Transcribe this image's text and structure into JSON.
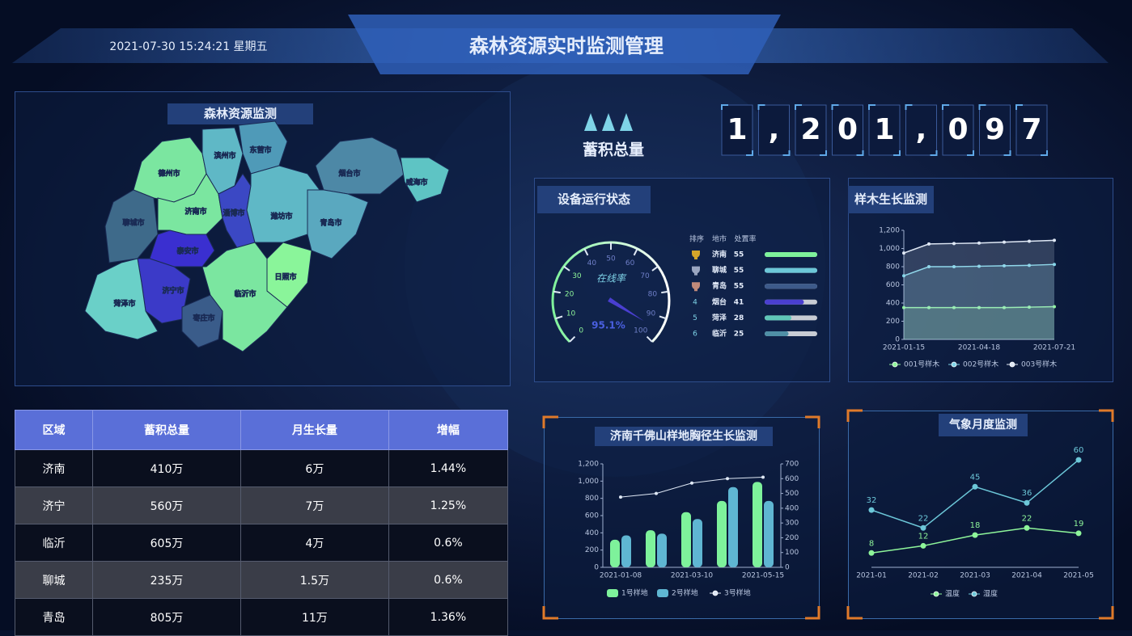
{
  "header": {
    "datetime": "2021-07-30 15:24:21 星期五",
    "title": "森林资源实时监测管理"
  },
  "map": {
    "title": "森林资源监测",
    "regions": [
      "德州市",
      "滨州市",
      "东营市",
      "烟台市",
      "威海市",
      "聊城市",
      "济南市",
      "淄博市",
      "潍坊市",
      "青岛市",
      "泰安市",
      "济宁市",
      "菏泽市",
      "枣庄市",
      "临沂市",
      "日照市"
    ]
  },
  "stock": {
    "label": "蓄积总量",
    "digits": [
      "1",
      ",",
      "2",
      "0",
      "1",
      ",",
      "0",
      "9",
      "7"
    ]
  },
  "device_status": {
    "title": "设备运行状态",
    "gauge": {
      "label": "在线率",
      "value": 95.1,
      "value_label": "95.1%",
      "range": [
        0,
        100
      ],
      "ticks": [
        0,
        10,
        20,
        30,
        40,
        50,
        60,
        70,
        80,
        90,
        100
      ]
    },
    "ranking": {
      "headers": [
        "排序",
        "地市",
        "处置率"
      ],
      "rows": [
        [
          null,
          "济南",
          55
        ],
        [
          null,
          "聊城",
          55
        ],
        [
          null,
          "青岛",
          55
        ],
        [
          4,
          "烟台",
          41
        ],
        [
          5,
          "菏泽",
          28
        ],
        [
          6,
          "临沂",
          25
        ]
      ],
      "bar_colors": [
        "#7ef29b",
        "#6cc7d8",
        "#3d5a8a",
        "#4a3fd0",
        "#5fc6b8",
        "#4f8fa6"
      ]
    }
  },
  "table": {
    "headers": [
      "区域",
      "蓄积总量",
      "月生长量",
      "增幅"
    ],
    "rows": [
      [
        "济南",
        "410万",
        "6万",
        "1.44%"
      ],
      [
        "济宁",
        "560万",
        "7万",
        "1.25%"
      ],
      [
        "临沂",
        "605万",
        "4万",
        "0.6%"
      ],
      [
        "聊城",
        "235万",
        "1.5万",
        "0.6%"
      ],
      [
        "青岛",
        "805万",
        "11万",
        "1.36%"
      ]
    ]
  },
  "chart_data": [
    {
      "type": "line",
      "title": "样木生长监测",
      "categories": [
        "2021-01-15",
        null,
        null,
        "2021-04-18",
        null,
        null,
        "2021-07-21"
      ],
      "series": [
        {
          "name": "001号样木",
          "color": "#8ef59a",
          "values": [
            350,
            350,
            350,
            350,
            350,
            355,
            360
          ]
        },
        {
          "name": "002号样木",
          "color": "#7fd4e8",
          "values": [
            700,
            800,
            800,
            805,
            810,
            815,
            825
          ]
        },
        {
          "name": "003号样木",
          "color": "#dfe8f5",
          "values": [
            950,
            1050,
            1055,
            1060,
            1070,
            1080,
            1090
          ]
        }
      ],
      "ylim": [
        0,
        1200
      ],
      "yticks": [
        0,
        200,
        400,
        600,
        800,
        {
          "value": 1000,
          "label": "1,000"
        },
        {
          "value": 1200,
          "label": "1,200"
        }
      ],
      "area": true
    },
    {
      "type": "bar",
      "title": "济南千佛山样地胸径生长监测",
      "categories": [
        "2021-01-08",
        null,
        "2021-03-10",
        null,
        "2021-05-15"
      ],
      "series": [
        {
          "name": "1号样地",
          "color": "#7ef29b",
          "values": [
            320,
            430,
            640,
            770,
            990
          ]
        },
        {
          "name": "2号样地",
          "color": "#5fb6d2",
          "values": [
            370,
            390,
            560,
            930,
            770
          ]
        },
        {
          "name": "3号样地",
          "color": "#dfe8f5",
          "type": "line",
          "axis": "y2",
          "values": [
            475,
            500,
            570,
            600,
            610
          ]
        }
      ],
      "ylim": [
        0,
        1200
      ],
      "yticks": [
        0,
        200,
        400,
        600,
        800,
        {
          "value": 1000,
          "label": "1,000"
        },
        {
          "value": 1200,
          "label": "1,200"
        }
      ],
      "y2lim": [
        0,
        700
      ],
      "y2ticks": [
        0,
        100,
        200,
        300,
        400,
        500,
        600,
        700
      ]
    },
    {
      "type": "line",
      "title": "气象月度监测",
      "categories": [
        "2021-01",
        "2021-02",
        "2021-03",
        "2021-04",
        "2021-05"
      ],
      "series": [
        {
          "name": "温度",
          "color": "#8ef59a",
          "values": [
            8,
            12,
            18,
            22,
            19
          ]
        },
        {
          "name": "湿度",
          "color": "#6cc7d8",
          "values": [
            32,
            22,
            45,
            36,
            60
          ]
        }
      ],
      "ylim": [
        0,
        65
      ],
      "data_labels": true
    }
  ]
}
